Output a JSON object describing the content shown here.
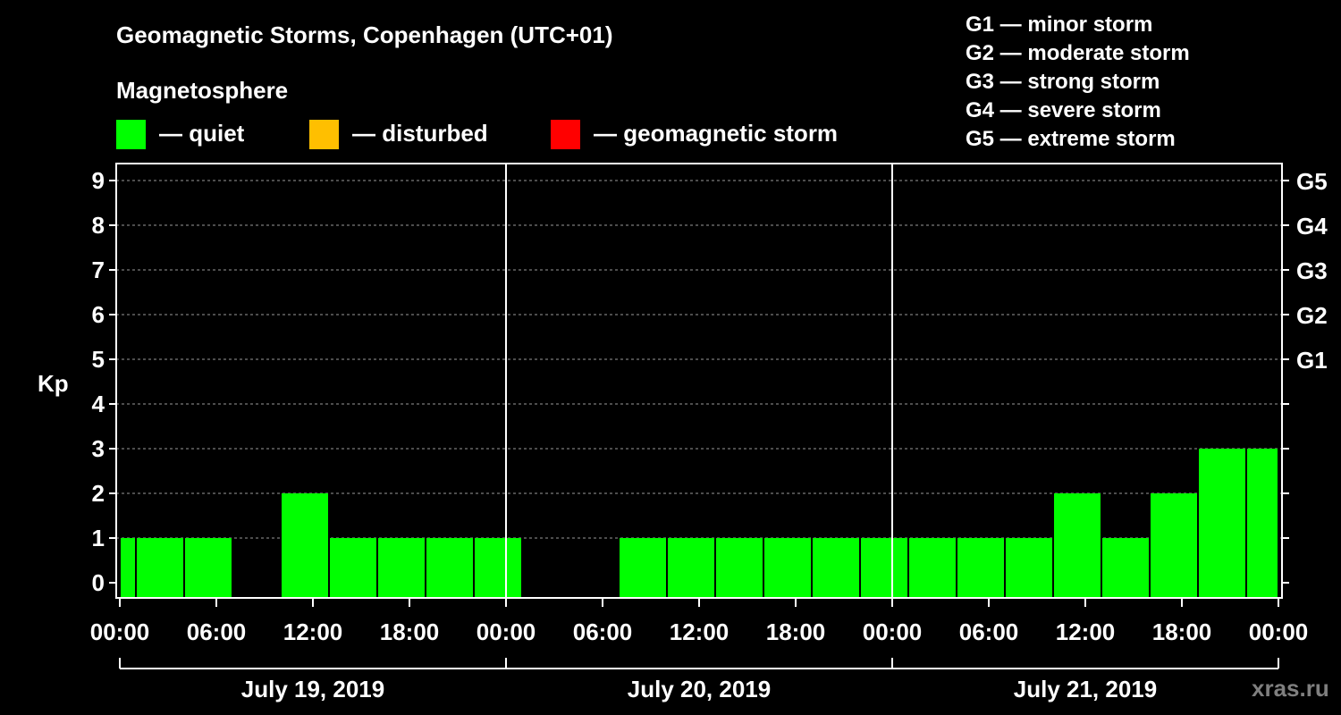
{
  "header": {
    "title": "Geomagnetic Storms, Copenhagen (UTC+01)",
    "subtitle": "Magnetosphere"
  },
  "legend": [
    {
      "label": "— quiet",
      "color": "#00ff00"
    },
    {
      "label": "— disturbed",
      "color": "#ffbf00"
    },
    {
      "label": "— geomagnetic storm",
      "color": "#ff0000"
    }
  ],
  "storm_levels": [
    "G1 — minor storm",
    "G2 — moderate storm",
    "G3 — strong storm",
    "G4 — severe storm",
    "G5 — extreme storm"
  ],
  "watermark": "xras.ru",
  "chart_data": {
    "type": "bar",
    "title": "Geomagnetic Storms, Copenhagen (UTC+01)",
    "ylabel": "Kp",
    "ylim": [
      0,
      9
    ],
    "yticks": [
      0,
      1,
      2,
      3,
      4,
      5,
      6,
      7,
      8,
      9
    ],
    "right_axis_labels": [
      {
        "kp": 5,
        "label": "G1"
      },
      {
        "kp": 6,
        "label": "G2"
      },
      {
        "kp": 7,
        "label": "G3"
      },
      {
        "kp": 8,
        "label": "G4"
      },
      {
        "kp": 9,
        "label": "G5"
      }
    ],
    "x_range_hours": [
      0,
      72
    ],
    "x_tick_labels": [
      "00:00",
      "06:00",
      "12:00",
      "18:00",
      "00:00",
      "06:00",
      "12:00",
      "18:00",
      "00:00",
      "06:00",
      "12:00",
      "18:00",
      "00:00"
    ],
    "x_tick_hours": [
      0,
      6,
      12,
      18,
      24,
      30,
      36,
      42,
      48,
      54,
      60,
      66,
      72
    ],
    "day_separators_hours": [
      24,
      48
    ],
    "days": [
      {
        "label": "July 19, 2019",
        "start": 0,
        "end": 24
      },
      {
        "label": "July 20, 2019",
        "start": 24,
        "end": 48
      },
      {
        "label": "July 21, 2019",
        "start": 48,
        "end": 72
      }
    ],
    "grid": "dashed horizontal at each Kp level",
    "bars": [
      {
        "start": 0,
        "end": 1,
        "kp": 1,
        "status": "quiet"
      },
      {
        "start": 1,
        "end": 4,
        "kp": 1,
        "status": "quiet"
      },
      {
        "start": 4,
        "end": 7,
        "kp": 1,
        "status": "quiet"
      },
      {
        "start": 10,
        "end": 13,
        "kp": 2,
        "status": "quiet"
      },
      {
        "start": 13,
        "end": 16,
        "kp": 1,
        "status": "quiet"
      },
      {
        "start": 16,
        "end": 19,
        "kp": 1,
        "status": "quiet"
      },
      {
        "start": 19,
        "end": 22,
        "kp": 1,
        "status": "quiet"
      },
      {
        "start": 22,
        "end": 25,
        "kp": 1,
        "status": "quiet"
      },
      {
        "start": 31,
        "end": 34,
        "kp": 1,
        "status": "quiet"
      },
      {
        "start": 34,
        "end": 37,
        "kp": 1,
        "status": "quiet"
      },
      {
        "start": 37,
        "end": 40,
        "kp": 1,
        "status": "quiet"
      },
      {
        "start": 40,
        "end": 43,
        "kp": 1,
        "status": "quiet"
      },
      {
        "start": 43,
        "end": 46,
        "kp": 1,
        "status": "quiet"
      },
      {
        "start": 46,
        "end": 49,
        "kp": 1,
        "status": "quiet"
      },
      {
        "start": 49,
        "end": 52,
        "kp": 1,
        "status": "quiet"
      },
      {
        "start": 52,
        "end": 55,
        "kp": 1,
        "status": "quiet"
      },
      {
        "start": 55,
        "end": 58,
        "kp": 1,
        "status": "quiet"
      },
      {
        "start": 58,
        "end": 61,
        "kp": 2,
        "status": "quiet"
      },
      {
        "start": 61,
        "end": 64,
        "kp": 1,
        "status": "quiet"
      },
      {
        "start": 64,
        "end": 67,
        "kp": 2,
        "status": "quiet"
      },
      {
        "start": 67,
        "end": 70,
        "kp": 3,
        "status": "quiet"
      },
      {
        "start": 70,
        "end": 72,
        "kp": 3,
        "status": "quiet"
      }
    ]
  }
}
